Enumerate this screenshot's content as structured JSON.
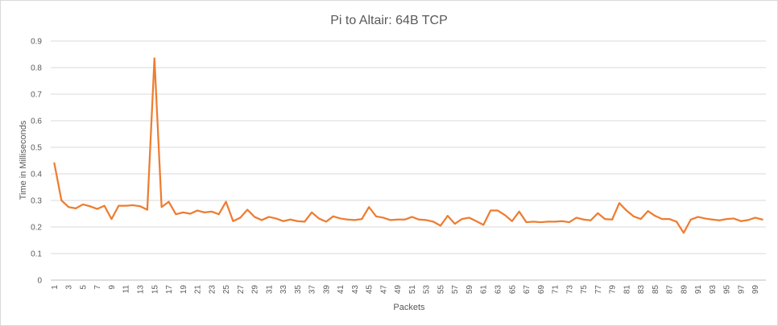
{
  "chart_data": {
    "type": "line",
    "title": "Pi to Altair: 64B TCP",
    "xlabel": "Packets",
    "ylabel": "Time in Milliseconds",
    "ylim": [
      0,
      0.9
    ],
    "yticks": [
      "0",
      "0.1",
      "0.2",
      "0.3",
      "0.4",
      "0.5",
      "0.6",
      "0.7",
      "0.8",
      "0.9"
    ],
    "grid": true,
    "legend": "none",
    "line_color": "#ed7d31",
    "x": [
      1,
      2,
      3,
      4,
      5,
      6,
      7,
      8,
      9,
      10,
      11,
      12,
      13,
      14,
      15,
      16,
      17,
      18,
      19,
      20,
      21,
      22,
      23,
      24,
      25,
      26,
      27,
      28,
      29,
      30,
      31,
      32,
      33,
      34,
      35,
      36,
      37,
      38,
      39,
      40,
      41,
      42,
      43,
      44,
      45,
      46,
      47,
      48,
      49,
      50,
      51,
      52,
      53,
      54,
      55,
      56,
      57,
      58,
      59,
      60,
      61,
      62,
      63,
      64,
      65,
      66,
      67,
      68,
      69,
      70,
      71,
      72,
      73,
      74,
      75,
      76,
      77,
      78,
      79,
      80,
      81,
      82,
      83,
      84,
      85,
      86,
      87,
      88,
      89,
      90,
      91,
      92,
      93,
      94,
      95,
      96,
      97,
      98,
      99,
      100
    ],
    "xtick_labels": [
      "1",
      "3",
      "5",
      "7",
      "9",
      "11",
      "13",
      "15",
      "17",
      "19",
      "21",
      "23",
      "25",
      "27",
      "29",
      "31",
      "33",
      "35",
      "37",
      "39",
      "41",
      "43",
      "45",
      "47",
      "49",
      "51",
      "53",
      "55",
      "57",
      "59",
      "61",
      "63",
      "65",
      "67",
      "69",
      "71",
      "73",
      "75",
      "77",
      "79",
      "81",
      "83",
      "85",
      "87",
      "89",
      "91",
      "93",
      "95",
      "97",
      "99"
    ],
    "values": [
      0.44,
      0.3,
      0.275,
      0.27,
      0.285,
      0.278,
      0.268,
      0.28,
      0.23,
      0.28,
      0.28,
      0.282,
      0.278,
      0.265,
      0.835,
      0.275,
      0.295,
      0.248,
      0.255,
      0.25,
      0.262,
      0.255,
      0.258,
      0.248,
      0.295,
      0.222,
      0.235,
      0.265,
      0.238,
      0.226,
      0.238,
      0.232,
      0.222,
      0.228,
      0.222,
      0.22,
      0.255,
      0.232,
      0.22,
      0.24,
      0.232,
      0.228,
      0.226,
      0.23,
      0.275,
      0.24,
      0.235,
      0.226,
      0.228,
      0.228,
      0.238,
      0.228,
      0.226,
      0.22,
      0.205,
      0.242,
      0.212,
      0.23,
      0.235,
      0.222,
      0.208,
      0.262,
      0.262,
      0.245,
      0.222,
      0.258,
      0.218,
      0.22,
      0.218,
      0.22,
      0.22,
      0.222,
      0.218,
      0.235,
      0.228,
      0.225,
      0.252,
      0.23,
      0.228,
      0.29,
      0.262,
      0.24,
      0.23,
      0.26,
      0.242,
      0.23,
      0.23,
      0.22,
      0.178,
      0.228,
      0.238,
      0.232,
      0.228,
      0.225,
      0.23,
      0.232,
      0.222,
      0.226,
      0.235,
      0.228
    ]
  }
}
